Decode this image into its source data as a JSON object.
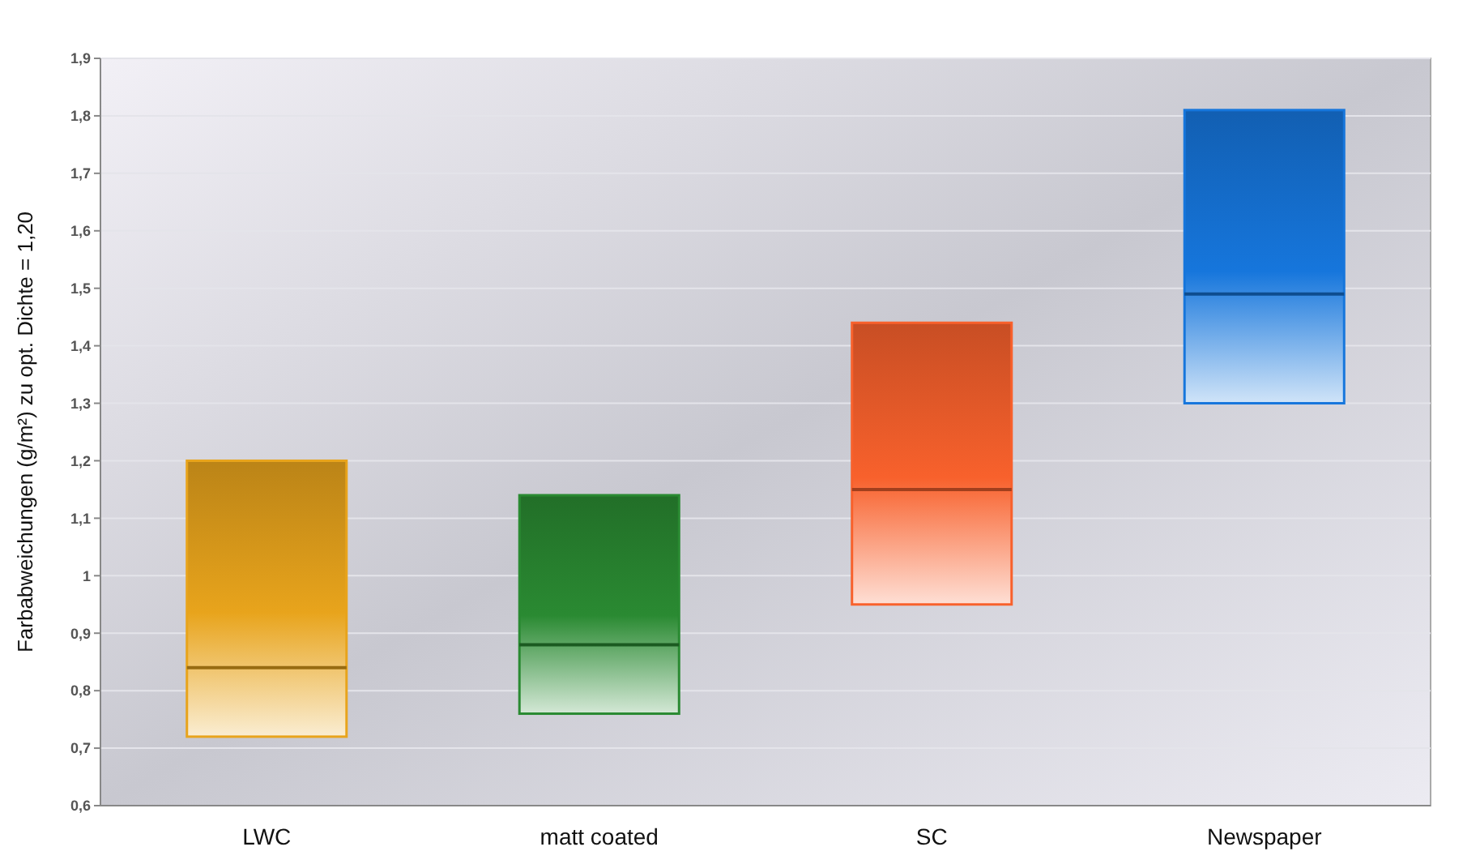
{
  "chart_data": {
    "type": "box",
    "ylabel": "Farbabweichungen (g/m²) zu opt. Dichte = 1,20",
    "categories": [
      "LWC",
      "matt coated",
      "SC",
      "Newspaper"
    ],
    "boxes": [
      {
        "low": 0.72,
        "q1": 0.72,
        "median": 0.84,
        "q3": 1.2,
        "high": 1.2
      },
      {
        "low": 0.76,
        "q1": 0.76,
        "median": 0.88,
        "q3": 1.14,
        "high": 1.14
      },
      {
        "low": 0.95,
        "q1": 0.95,
        "median": 1.15,
        "q3": 1.44,
        "high": 1.44
      },
      {
        "low": 1.3,
        "q1": 1.3,
        "median": 1.49,
        "q3": 1.81,
        "high": 1.81
      }
    ],
    "colors": [
      "#e8a41c",
      "#2a8a32",
      "#f8612c",
      "#1676dc"
    ],
    "ylim": [
      0.6,
      1.9
    ],
    "yticks": [
      {
        "value": 0.6,
        "label": "0,6"
      },
      {
        "value": 0.7,
        "label": "0,7"
      },
      {
        "value": 0.8,
        "label": "0,8"
      },
      {
        "value": 0.9,
        "label": "0,9"
      },
      {
        "value": 1,
        "label": "1"
      },
      {
        "value": 1.1,
        "label": "1,1"
      },
      {
        "value": 1.2,
        "label": "1,2"
      },
      {
        "value": 1.3,
        "label": "1,3"
      },
      {
        "value": 1.4,
        "label": "1,4"
      },
      {
        "value": 1.5,
        "label": "1,5"
      },
      {
        "value": 1.6,
        "label": "1,6"
      },
      {
        "value": 1.7,
        "label": "1,7"
      },
      {
        "value": 1.8,
        "label": "1,8"
      },
      {
        "value": 1.9,
        "label": "1,9"
      }
    ],
    "grid": "y"
  }
}
